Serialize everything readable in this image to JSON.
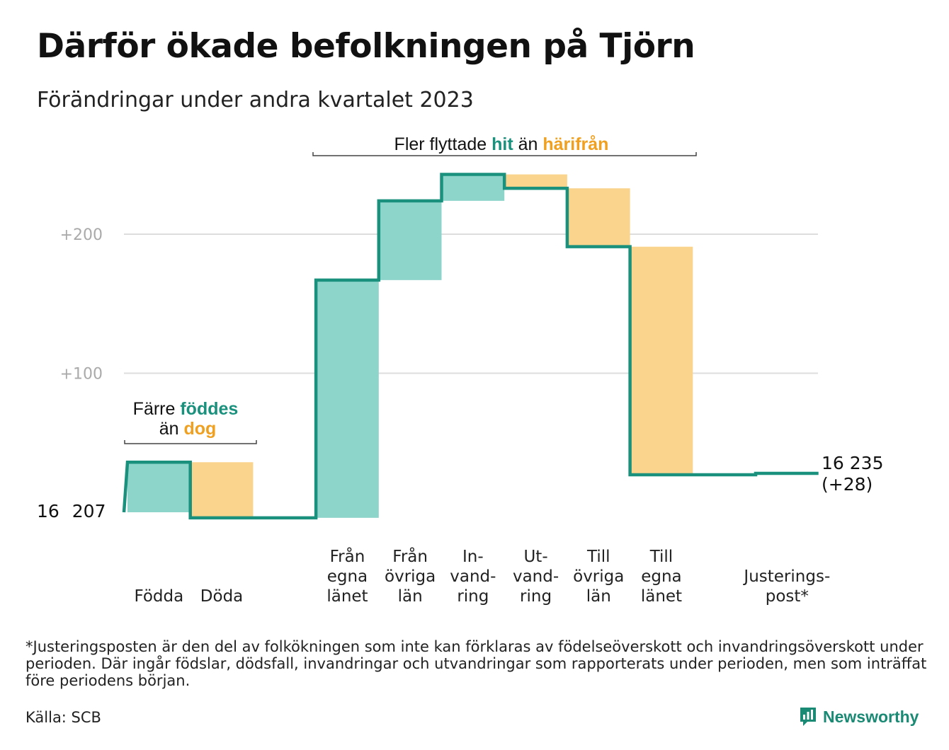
{
  "title": "Därför ökade befolkningen på Tjörn",
  "subtitle": "Förändringar under andra kvartalet 2023",
  "chart_data": {
    "type": "waterfall",
    "start_value": 16207,
    "start_label": "16 207",
    "end_value": 16235,
    "end_label": "16 235",
    "end_change_label": "(+28)",
    "y_ticks": [
      {
        "value": 100,
        "label": "+100"
      },
      {
        "value": 200,
        "label": "+200"
      }
    ],
    "ylim": [
      -15,
      255
    ],
    "grid": true,
    "steps": [
      {
        "label": [
          "Födda"
        ],
        "value": 36,
        "kind": "in"
      },
      {
        "label": [
          "Döda"
        ],
        "value": -40,
        "kind": "out"
      },
      {
        "label": [],
        "value": 0,
        "kind": "gap"
      },
      {
        "label": [
          "Från",
          "egna",
          "länet"
        ],
        "value": 171,
        "kind": "in"
      },
      {
        "label": [
          "Från",
          "övriga",
          "län"
        ],
        "value": 57,
        "kind": "in"
      },
      {
        "label": [
          "In-",
          "vand-",
          "ring"
        ],
        "value": 19,
        "kind": "in"
      },
      {
        "label": [
          "Ut-",
          "vand-",
          "ring"
        ],
        "value": -10,
        "kind": "out"
      },
      {
        "label": [
          "Till",
          "övriga",
          "län"
        ],
        "value": -42,
        "kind": "out"
      },
      {
        "label": [
          "Till",
          "egna",
          "länet"
        ],
        "value": -164,
        "kind": "out"
      },
      {
        "label": [],
        "value": 0,
        "kind": "gap"
      },
      {
        "label": [
          "Justerings-",
          "post*"
        ],
        "value": 1,
        "kind": "adjust"
      }
    ],
    "annotations": {
      "births": {
        "prefix": "Färre",
        "highlight_in": "föddes",
        "middle": "än",
        "highlight_out": "dog"
      },
      "moves": {
        "prefix": "Fler flyttade",
        "highlight_in": "hit",
        "middle": "än",
        "highlight_out": "härifrån"
      }
    },
    "colors": {
      "in_fill": "#8dd4cb",
      "out_fill": "#fad48c",
      "line": "#1a917d",
      "in_text": "#1a917d",
      "out_text": "#f0a020",
      "grid": "#dddddd",
      "tick_text": "#aaaaaa"
    }
  },
  "footnote": "*Justeringsposten är den del av folkökningen som inte kan förklaras av födelseöverskott och invandringsöverskott under perioden. Där ingår födslar, dödsfall, invandringar och utvandringar som rapporterats under perioden, men som inträffat före periodens början.",
  "source": "Källa: SCB",
  "brand": {
    "name": "Newsworthy",
    "icon": "bar-chart-speech-icon"
  }
}
